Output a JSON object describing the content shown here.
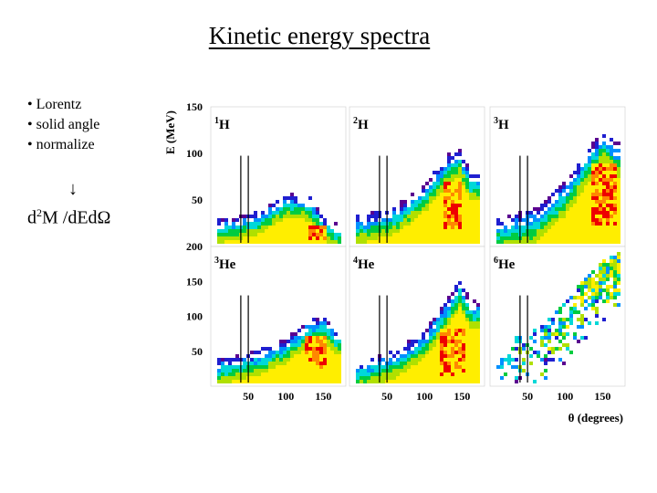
{
  "slide": {
    "title": "Kinetic energy spectra",
    "bullets": [
      "• Lorentz",
      "• solid angle",
      "• normalize"
    ],
    "arrow": "↓",
    "formula": {
      "prefix": "d",
      "sup": "2",
      "suffix": "M /dEdΩ"
    }
  },
  "chart_data": {
    "type": "heatmap",
    "title": "Kinetic energy spectra",
    "xlabel": "θ (degrees)",
    "ylabel": "E (MeV)",
    "xlim": [
      0,
      180
    ],
    "ylim_top_row": [
      0,
      150
    ],
    "ylim_bottom_row": [
      0,
      200
    ],
    "x_ticks": [
      50,
      100,
      150
    ],
    "y_ticks_top_row": [
      50,
      100,
      150
    ],
    "y_ticks_bottom_row": [
      50,
      100,
      150,
      200
    ],
    "marker_lines_deg": [
      40,
      50
    ],
    "colorscale": [
      "#5a0090",
      "#1f1fd0",
      "#0090ff",
      "#00d8d8",
      "#00cc40",
      "#b0e000",
      "#ffee00",
      "#ff8800",
      "#ee0000"
    ],
    "panels": [
      {
        "mass": "1",
        "element": "H",
        "row": 0,
        "col": 0,
        "ridge": [
          [
            15,
            22
          ],
          [
            60,
            30
          ],
          [
            100,
            50
          ],
          [
            130,
            45
          ],
          [
            150,
            24
          ],
          [
            165,
            18
          ]
        ],
        "ridge_width": 26,
        "hot": [
          130,
          152,
          8,
          26
        ],
        "sparse": false
      },
      {
        "mass": "2",
        "element": "H",
        "row": 0,
        "col": 1,
        "ridge": [
          [
            15,
            25
          ],
          [
            60,
            35
          ],
          [
            100,
            60
          ],
          [
            130,
            90
          ],
          [
            145,
            95
          ],
          [
            160,
            70
          ]
        ],
        "ridge_width": 32,
        "hot": [
          125,
          145,
          20,
          70
        ],
        "sparse": false
      },
      {
        "mass": "3",
        "element": "H",
        "row": 0,
        "col": 2,
        "ridge": [
          [
            15,
            20
          ],
          [
            60,
            30
          ],
          [
            100,
            60
          ],
          [
            130,
            95
          ],
          [
            150,
            115
          ],
          [
            165,
            100
          ]
        ],
        "ridge_width": 38,
        "hot": [
          135,
          165,
          25,
          90
        ],
        "sparse": false
      },
      {
        "mass": "3",
        "element": "He",
        "row": 1,
        "col": 0,
        "ridge": [
          [
            15,
            30
          ],
          [
            60,
            40
          ],
          [
            100,
            60
          ],
          [
            130,
            85
          ],
          [
            150,
            90
          ],
          [
            165,
            70
          ]
        ],
        "ridge_width": 38,
        "hot": [
          125,
          150,
          25,
          75
        ],
        "sparse": false
      },
      {
        "mass": "4",
        "element": "He",
        "row": 1,
        "col": 1,
        "ridge": [
          [
            15,
            25
          ],
          [
            60,
            40
          ],
          [
            100,
            70
          ],
          [
            130,
            115
          ],
          [
            145,
            140
          ],
          [
            160,
            110
          ]
        ],
        "ridge_width": 42,
        "hot": [
          120,
          150,
          15,
          85
        ],
        "sparse": false
      },
      {
        "mass": "6",
        "element": "He",
        "row": 1,
        "col": 2,
        "ridge": [
          [
            15,
            40
          ],
          [
            60,
            60
          ],
          [
            100,
            100
          ],
          [
            130,
            140
          ],
          [
            150,
            160
          ],
          [
            170,
            170
          ]
        ],
        "ridge_width": 70,
        "hot": [
          0,
          0,
          0,
          0
        ],
        "sparse": true
      }
    ]
  }
}
